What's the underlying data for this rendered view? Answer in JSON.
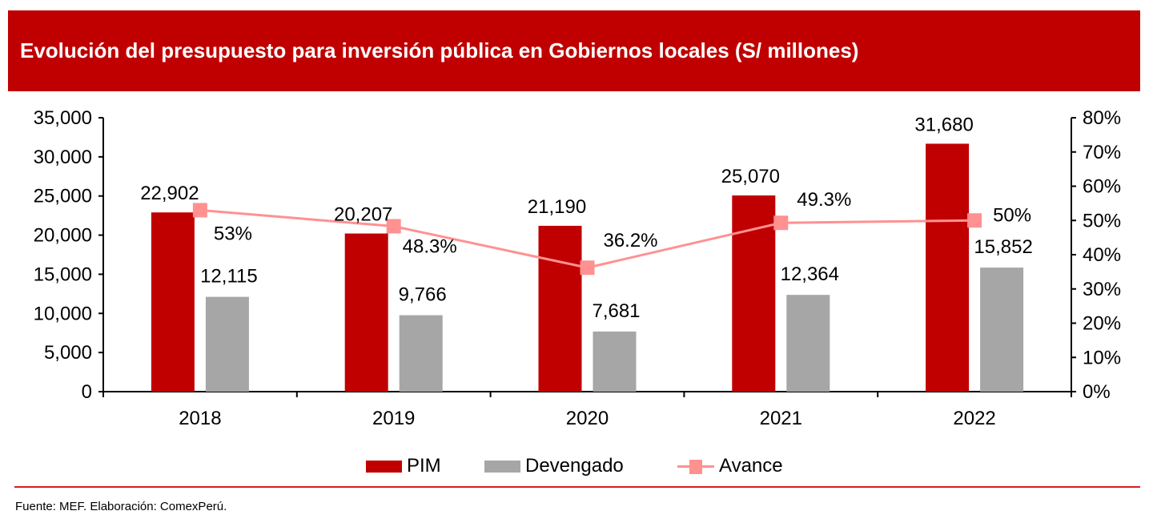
{
  "header": {
    "title": "Evolución del presupuesto para inversión pública en Gobiernos locales (S/ millones)"
  },
  "colors": {
    "title_background": "#c00000",
    "pim": "#c00000",
    "devengado": "#a6a6a6",
    "avance": "#ff9191",
    "divider": "#d81e1e"
  },
  "chart_data": {
    "type": "bar",
    "title": "Evolución del presupuesto para inversión pública en Gobiernos locales (S/ millones)",
    "categories": [
      "2018",
      "2019",
      "2020",
      "2021",
      "2022"
    ],
    "series": [
      {
        "name": "PIM",
        "type": "bar",
        "axis": "left",
        "values": [
          22902,
          20207,
          21190,
          25070,
          31680
        ],
        "labels": [
          "22,902",
          "20,207",
          "21,190",
          "25,070",
          "31,680"
        ]
      },
      {
        "name": "Devengado",
        "type": "bar",
        "axis": "left",
        "values": [
          12115,
          9766,
          7681,
          12364,
          15852
        ],
        "labels": [
          "12,115",
          "9,766",
          "7,681",
          "12,364",
          "15,852"
        ]
      },
      {
        "name": "Avance",
        "type": "line",
        "axis": "right",
        "values": [
          53,
          48.3,
          36.2,
          49.3,
          50
        ],
        "labels": [
          "53%",
          "48.3%",
          "36.2%",
          "49.3%",
          "50%"
        ]
      }
    ],
    "y_left": {
      "range": [
        0,
        35000
      ],
      "ticks": [
        0,
        5000,
        10000,
        15000,
        20000,
        25000,
        30000,
        35000
      ],
      "tick_labels": [
        "0",
        "5,000",
        "10,000",
        "15,000",
        "20,000",
        "25,000",
        "30,000",
        "35,000"
      ]
    },
    "y_right": {
      "range": [
        0,
        80
      ],
      "ticks": [
        0,
        10,
        20,
        30,
        40,
        50,
        60,
        70,
        80
      ],
      "tick_labels": [
        "0%",
        "10%",
        "20%",
        "30%",
        "40%",
        "50%",
        "60%",
        "70%",
        "80%"
      ]
    },
    "xlabel": "",
    "ylabel": "",
    "grid": false,
    "legend": {
      "position": "bottom",
      "entries": [
        "PIM",
        "Devengado",
        "Avance"
      ]
    }
  },
  "footer": {
    "source": "Fuente: MEF. Elaboración: ComexPerú."
  }
}
